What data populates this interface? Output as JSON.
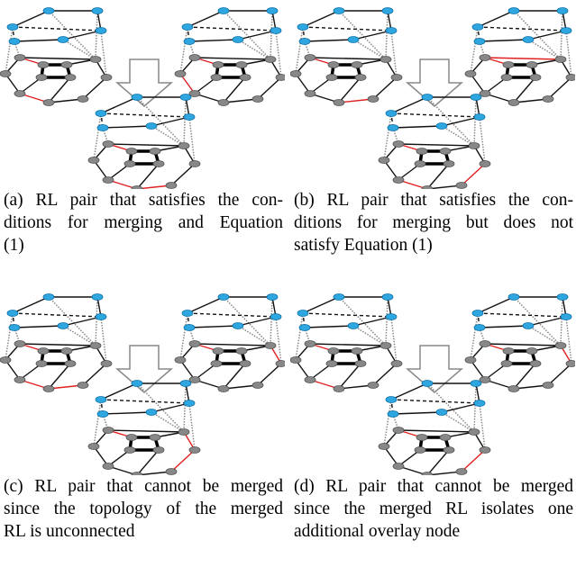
{
  "panels": [
    {
      "caption": {
        "lines": [
          "(a) RL pair that satisfies the con-",
          "ditions for merging and Equation",
          "(1)"
        ]
      }
    },
    {
      "caption": {
        "lines": [
          "(b) RL pair that satisfies the con-",
          "ditions for merging but does not",
          "satisfy Equation (1)"
        ]
      }
    },
    {
      "caption": {
        "lines": [
          "(c) RL pair that cannot be merged",
          "since the topology of the merged",
          "RL is unconnected"
        ]
      }
    },
    {
      "caption": {
        "lines": [
          "(d) RL pair that cannot be merged",
          "since the merged RL isolates one",
          "additional overlay node"
        ]
      }
    }
  ]
}
